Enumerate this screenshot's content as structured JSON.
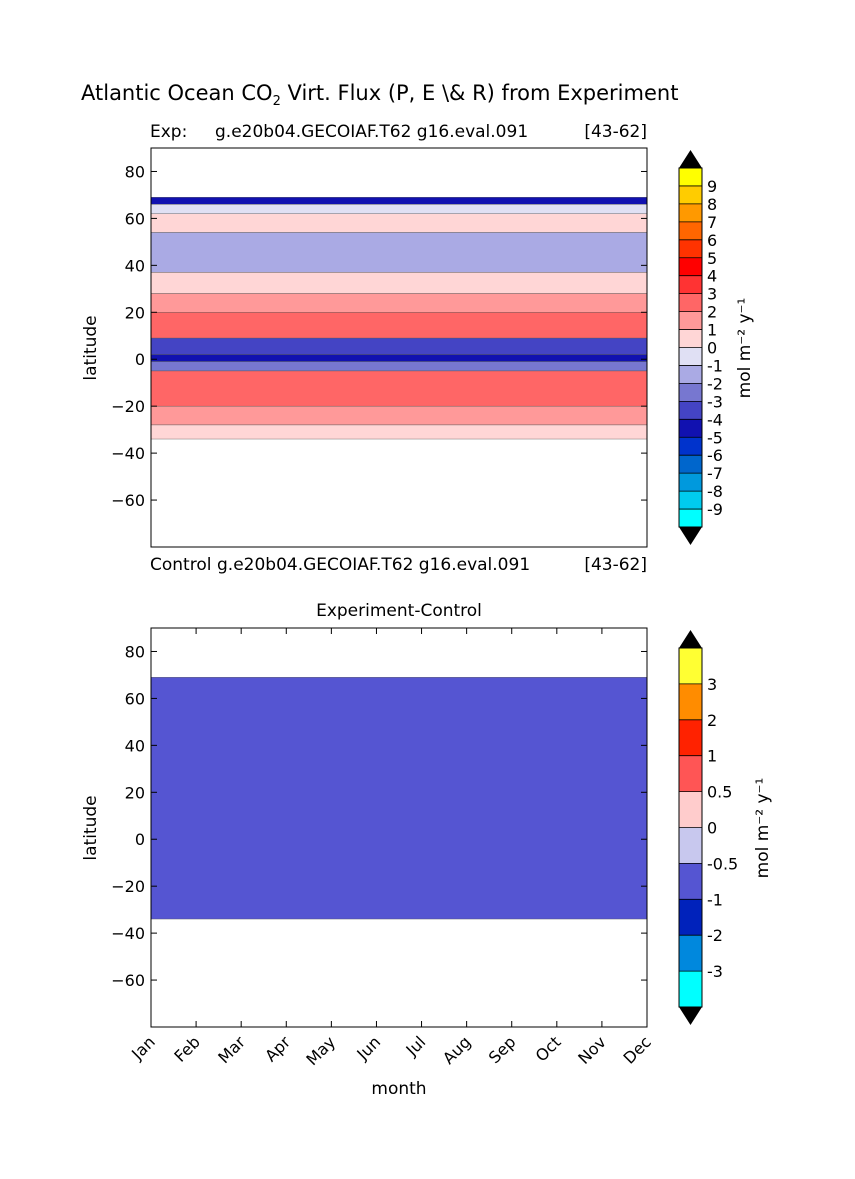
{
  "figure": {
    "title_prefix": "Atlantic Ocean CO",
    "title_sub": "2",
    "title_suffix": " Virt. Flux (P, E \\& R) from Experiment"
  },
  "chart_data": [
    {
      "type": "heatmap",
      "panel": "top",
      "subtitle_left": "Exp:",
      "subtitle_center": "g.e20b04.GECOIAF.T62 g16.eval.091",
      "subtitle_right": "[43-62]",
      "xlabel": "",
      "ylabel": "latitude",
      "ylim": [
        -80,
        90
      ],
      "yticks": [
        "80",
        "60",
        "40",
        "20",
        "0",
        "−20",
        "−40",
        "−60"
      ],
      "colorbar_label": "mol m⁻² y⁻¹",
      "colorbar_ticks": [
        "9",
        "8",
        "7",
        "6",
        "5",
        "4",
        "3",
        "2",
        "1",
        "0",
        "-1",
        "-2",
        "-3",
        "-4",
        "-5",
        "-6",
        "-7",
        "-8",
        "-9"
      ],
      "colorbar_colors": [
        "#ffff00",
        "#ffcc00",
        "#ff9900",
        "#ff6600",
        "#ff3300",
        "#ff0000",
        "#ff3333",
        "#ff6666",
        "#ff9999",
        "#ffd6d6",
        "#e0e0f4",
        "#aaaae4",
        "#7777d0",
        "#4444c4",
        "#1111b0",
        "#0033cc",
        "#0066cc",
        "#0099dd",
        "#00ccee",
        "#00ffff"
      ],
      "bands": [
        {
          "lat_top": 69,
          "lat_bottom": 66,
          "level": "-4"
        },
        {
          "lat_top": 66,
          "lat_bottom": 62,
          "level": "0"
        },
        {
          "lat_top": 62,
          "lat_bottom": 54,
          "level": "1"
        },
        {
          "lat_top": 54,
          "lat_bottom": 37,
          "level": "-1"
        },
        {
          "lat_top": 37,
          "lat_bottom": 28,
          "level": "1"
        },
        {
          "lat_top": 28,
          "lat_bottom": 20,
          "level": "2"
        },
        {
          "lat_top": 20,
          "lat_bottom": 9,
          "level": "3"
        },
        {
          "lat_top": 9,
          "lat_bottom": 2,
          "level": "-3"
        },
        {
          "lat_top": 2,
          "lat_bottom": -1,
          "level": "-4"
        },
        {
          "lat_top": -1,
          "lat_bottom": -5,
          "level": "-2"
        },
        {
          "lat_top": -5,
          "lat_bottom": -20,
          "level": "3"
        },
        {
          "lat_top": -20,
          "lat_bottom": -28,
          "level": "2"
        },
        {
          "lat_top": -28,
          "lat_bottom": -34,
          "level": "1"
        }
      ]
    },
    {
      "type": "heatmap",
      "panel": "bottom",
      "subtitle_left": "Control",
      "subtitle_center": "g.e20b04.GECOIAF.T62 g16.eval.091",
      "subtitle_right": "[43-62]",
      "title": "Experiment-Control",
      "xlabel": "month",
      "ylabel": "latitude",
      "ylim": [
        -80,
        90
      ],
      "yticks": [
        "80",
        "60",
        "40",
        "20",
        "0",
        "−20",
        "−40",
        "−60"
      ],
      "x": [
        "Jan",
        "Feb",
        "Mar",
        "Apr",
        "May",
        "Jun",
        "Jul",
        "Aug",
        "Sep",
        "Oct",
        "Nov",
        "Dec"
      ],
      "colorbar_label": "mol m⁻² y⁻¹",
      "colorbar_ticks": [
        "3",
        "2",
        "1",
        "0.5",
        "0",
        "-0.5",
        "-1",
        "-2",
        "-3"
      ],
      "colorbar_colors": [
        "#ffff33",
        "#ff8c00",
        "#ff2200",
        "#ff5555",
        "#ffcccc",
        "#c8c8ee",
        "#5555d2",
        "#0022bb",
        "#0088dd",
        "#00ffff"
      ],
      "bands": [
        {
          "lat_top": 69,
          "lat_bottom": -34,
          "level": "-0.5"
        }
      ]
    }
  ]
}
